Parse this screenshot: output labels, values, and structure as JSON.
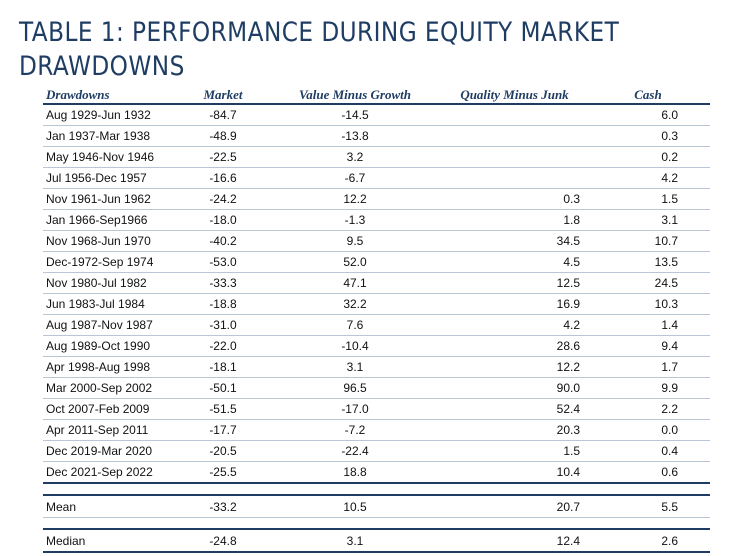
{
  "title": "TABLE 1: PERFORMANCE DURING EQUITY MARKET\nDRAWDOWNS",
  "columns": [
    "Drawdowns",
    "Market",
    "Value Minus Growth",
    "Quality Minus Junk",
    "Cash"
  ],
  "rows": [
    [
      "Aug 1929-Jun 1932",
      "-84.7",
      "-14.5",
      "",
      "6.0"
    ],
    [
      "Jan 1937-Mar 1938",
      "-48.9",
      "-13.8",
      "",
      "0.3"
    ],
    [
      "May 1946-Nov 1946",
      "-22.5",
      "3.2",
      "",
      "0.2"
    ],
    [
      "Jul 1956-Dec 1957",
      "-16.6",
      "-6.7",
      "",
      "4.2"
    ],
    [
      "Nov 1961-Jun 1962",
      "-24.2",
      "12.2",
      "0.3",
      "1.5"
    ],
    [
      "Jan 1966-Sep1966",
      "-18.0",
      "-1.3",
      "1.8",
      "3.1"
    ],
    [
      "Nov 1968-Jun 1970",
      "-40.2",
      "9.5",
      "34.5",
      "10.7"
    ],
    [
      "Dec-1972-Sep 1974",
      "-53.0",
      "52.0",
      "4.5",
      "13.5"
    ],
    [
      "Nov 1980-Jul 1982",
      "-33.3",
      "47.1",
      "12.5",
      "24.5"
    ],
    [
      "Jun 1983-Jul 1984",
      "-18.8",
      "32.2",
      "16.9",
      "10.3"
    ],
    [
      "Aug 1987-Nov 1987",
      "-31.0",
      "7.6",
      "4.2",
      "1.4"
    ],
    [
      "Aug 1989-Oct 1990",
      "-22.0",
      "-10.4",
      "28.6",
      "9.4"
    ],
    [
      "Apr 1998-Aug 1998",
      "-18.1",
      "3.1",
      "12.2",
      "1.7"
    ],
    [
      "Mar 2000-Sep 2002",
      "-50.1",
      "96.5",
      "90.0",
      "9.9"
    ],
    [
      "Oct 2007-Feb 2009",
      "-51.5",
      "-17.0",
      "52.4",
      "2.2"
    ],
    [
      "Apr 2011-Sep 2011",
      "-17.7",
      "-7.2",
      "20.3",
      "0.0"
    ],
    [
      "Dec 2019-Mar 2020",
      "-20.5",
      "-22.4",
      "1.5",
      "0.4"
    ],
    [
      "Dec 2021-Sep 2022",
      "-25.5",
      "18.8",
      "10.4",
      "0.6"
    ]
  ],
  "summary": [
    [
      "Mean",
      "-33.2",
      "10.5",
      "20.7",
      "5.5"
    ],
    [
      "Median",
      "-24.8",
      "3.1",
      "12.4",
      "2.6"
    ]
  ],
  "colors": {
    "title": "#1f3d63",
    "rule": "#1f3d63",
    "row_line": "#b9c6d6"
  }
}
